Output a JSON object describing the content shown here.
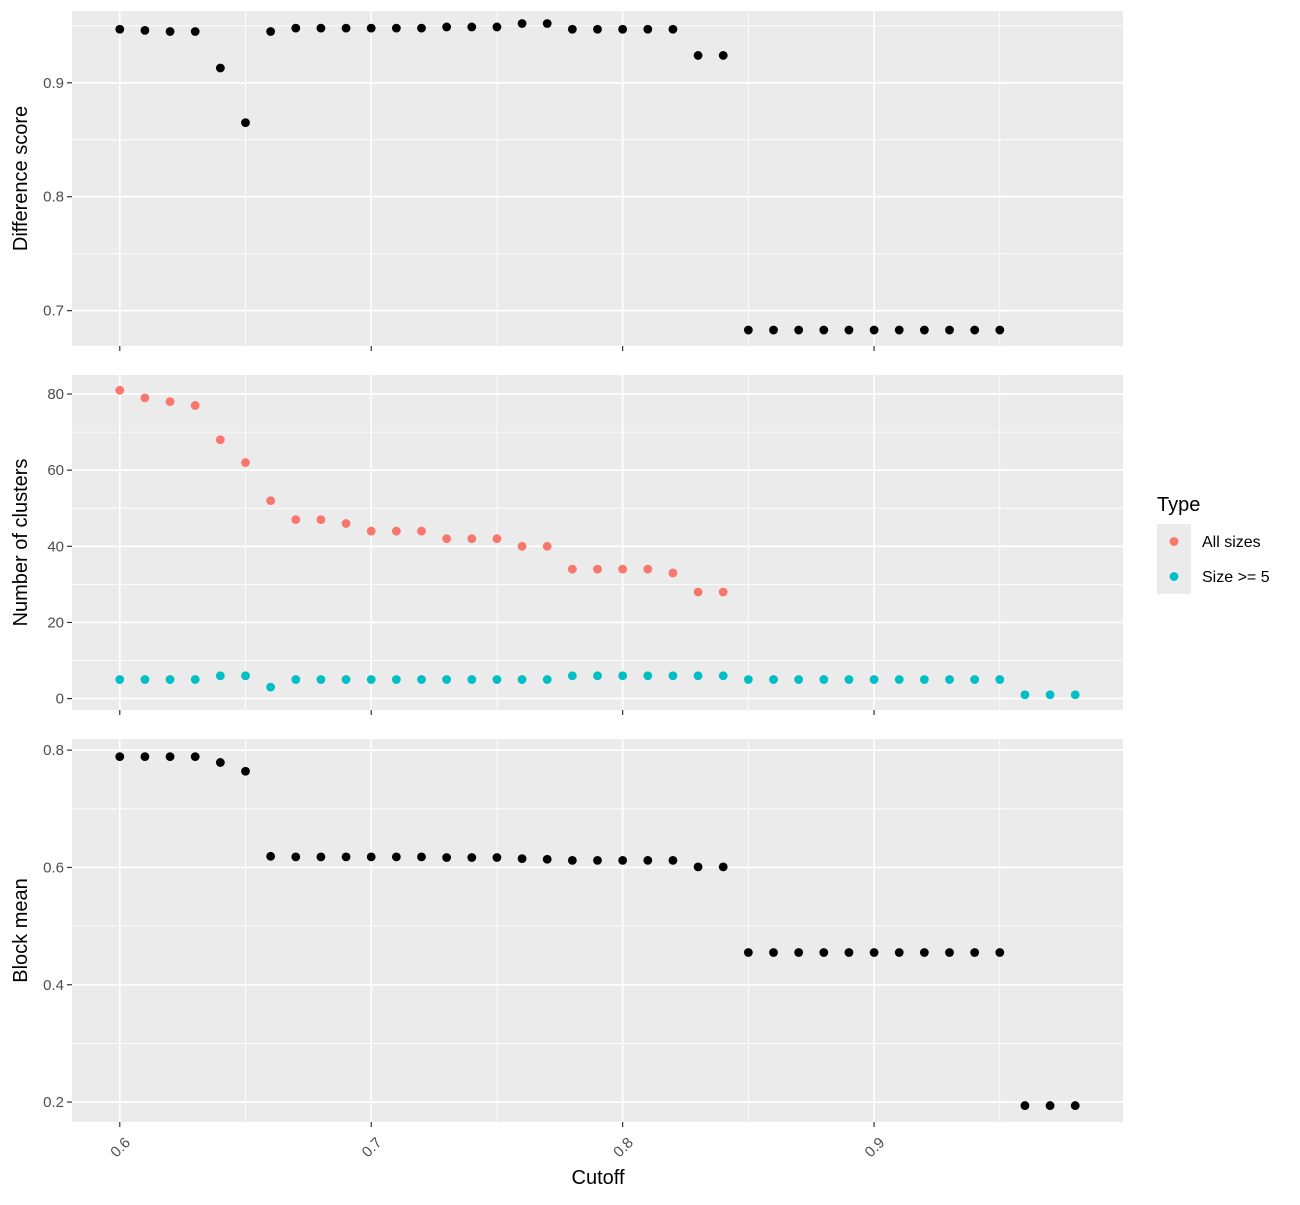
{
  "chart_data": {
    "type": "scatter",
    "xlabel": "Cutoff",
    "xlim": [
      0.581,
      0.999
    ],
    "x_ticks": [
      0.6,
      0.7,
      0.8,
      0.9
    ],
    "x_tick_labels": [
      "0.6",
      "0.7",
      "0.8",
      "0.9"
    ],
    "x_tick_rotation": -45,
    "grid": true,
    "legend": {
      "title": "Type",
      "placement": "right",
      "entries": [
        {
          "label": "All sizes",
          "color": "#f8766d"
        },
        {
          "label": "Size >= 5",
          "color": "#00bfc4"
        }
      ]
    },
    "panels": [
      {
        "ylabel": "Difference score",
        "ylim": [
          0.669,
          0.963
        ],
        "y_ticks": [
          0.7,
          0.8,
          0.9
        ],
        "y_tick_labels": [
          "0.7",
          "0.8",
          "0.9"
        ],
        "series": [
          {
            "color": "#000000",
            "x": [
              0.6,
              0.61,
              0.62,
              0.63,
              0.64,
              0.65,
              0.66,
              0.67,
              0.68,
              0.69,
              0.7,
              0.71,
              0.72,
              0.73,
              0.74,
              0.75,
              0.76,
              0.77,
              0.78,
              0.79,
              0.8,
              0.81,
              0.82,
              0.83,
              0.84,
              0.85,
              0.86,
              0.87,
              0.88,
              0.89,
              0.9,
              0.91,
              0.92,
              0.93,
              0.94,
              0.95
            ],
            "y": [
              0.947,
              0.946,
              0.945,
              0.945,
              0.913,
              0.865,
              0.945,
              0.948,
              0.948,
              0.948,
              0.948,
              0.948,
              0.948,
              0.949,
              0.949,
              0.949,
              0.952,
              0.952,
              0.947,
              0.947,
              0.947,
              0.947,
              0.947,
              0.924,
              0.924,
              0.683,
              0.683,
              0.683,
              0.683,
              0.683,
              0.683,
              0.683,
              0.683,
              0.683,
              0.683,
              0.683
            ]
          }
        ]
      },
      {
        "ylabel": "Number of clusters",
        "ylim": [
          -3,
          85
        ],
        "y_ticks": [
          0,
          20,
          40,
          60,
          80
        ],
        "y_tick_labels": [
          "0",
          "20",
          "40",
          "60",
          "80"
        ],
        "series": [
          {
            "name": "All sizes",
            "color": "#f8766d",
            "x": [
              0.6,
              0.61,
              0.62,
              0.63,
              0.64,
              0.65,
              0.66,
              0.67,
              0.68,
              0.69,
              0.7,
              0.71,
              0.72,
              0.73,
              0.74,
              0.75,
              0.76,
              0.77,
              0.78,
              0.79,
              0.8,
              0.81,
              0.82,
              0.83,
              0.84
            ],
            "y": [
              81,
              79,
              78,
              77,
              68,
              62,
              52,
              47,
              47,
              46,
              44,
              44,
              44,
              42,
              42,
              42,
              40,
              40,
              34,
              34,
              34,
              34,
              33,
              28,
              28
            ]
          },
          {
            "name": "Size >= 5",
            "color": "#00bfc4",
            "x": [
              0.6,
              0.61,
              0.62,
              0.63,
              0.64,
              0.65,
              0.66,
              0.67,
              0.68,
              0.69,
              0.7,
              0.71,
              0.72,
              0.73,
              0.74,
              0.75,
              0.76,
              0.77,
              0.78,
              0.79,
              0.8,
              0.81,
              0.82,
              0.83,
              0.84,
              0.85,
              0.86,
              0.87,
              0.88,
              0.89,
              0.9,
              0.91,
              0.92,
              0.93,
              0.94,
              0.95,
              0.96,
              0.97,
              0.98
            ],
            "y": [
              5,
              5,
              5,
              5,
              6,
              6,
              3,
              5,
              5,
              5,
              5,
              5,
              5,
              5,
              5,
              5,
              5,
              5,
              6,
              6,
              6,
              6,
              6,
              6,
              6,
              5,
              5,
              5,
              5,
              5,
              5,
              5,
              5,
              5,
              5,
              5,
              1,
              1,
              1
            ]
          }
        ]
      },
      {
        "ylabel": "Block mean",
        "ylim": [
          0.166,
          0.819
        ],
        "y_ticks": [
          0.2,
          0.4,
          0.6,
          0.8
        ],
        "y_tick_labels": [
          "0.2",
          "0.4",
          "0.6",
          "0.8"
        ],
        "series": [
          {
            "color": "#000000",
            "x": [
              0.6,
              0.61,
              0.62,
              0.63,
              0.64,
              0.65,
              0.66,
              0.67,
              0.68,
              0.69,
              0.7,
              0.71,
              0.72,
              0.73,
              0.74,
              0.75,
              0.76,
              0.77,
              0.78,
              0.79,
              0.8,
              0.81,
              0.82,
              0.83,
              0.84,
              0.85,
              0.86,
              0.87,
              0.88,
              0.89,
              0.9,
              0.91,
              0.92,
              0.93,
              0.94,
              0.95,
              0.96,
              0.97,
              0.98
            ],
            "y": [
              0.789,
              0.789,
              0.789,
              0.789,
              0.779,
              0.764,
              0.619,
              0.618,
              0.618,
              0.618,
              0.618,
              0.618,
              0.618,
              0.617,
              0.617,
              0.617,
              0.615,
              0.614,
              0.612,
              0.612,
              0.612,
              0.612,
              0.612,
              0.601,
              0.601,
              0.455,
              0.455,
              0.455,
              0.455,
              0.455,
              0.455,
              0.455,
              0.455,
              0.455,
              0.455,
              0.455,
              0.194,
              0.194,
              0.194
            ]
          }
        ]
      }
    ]
  }
}
